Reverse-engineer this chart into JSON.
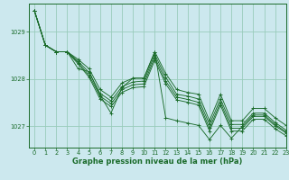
{
  "bg_color": "#cce8ee",
  "grid_color": "#99ccbb",
  "line_color": "#1a6b2a",
  "marker_color": "#1a6b2a",
  "xlabel": "Graphe pression niveau de la mer (hPa)",
  "xlabel_fontsize": 6.0,
  "tick_fontsize": 4.8,
  "xlim": [
    -0.5,
    23
  ],
  "ylim": [
    1026.55,
    1029.6
  ],
  "yticks": [
    1027,
    1028,
    1029
  ],
  "xticks": [
    0,
    1,
    2,
    3,
    4,
    5,
    6,
    7,
    8,
    9,
    10,
    11,
    12,
    13,
    14,
    15,
    16,
    17,
    18,
    19,
    20,
    21,
    22,
    23
  ],
  "series": [
    [
      1029.45,
      1028.72,
      1028.58,
      1028.58,
      1028.42,
      1028.22,
      1027.78,
      1027.62,
      1027.92,
      1028.02,
      1028.02,
      1028.58,
      1028.12,
      1027.78,
      1027.72,
      1027.68,
      1027.12,
      1027.68,
      1027.12,
      1027.12,
      1027.38,
      1027.38,
      1027.18,
      1027.02
    ],
    [
      1029.45,
      1028.72,
      1028.58,
      1028.58,
      1028.38,
      1028.14,
      1027.7,
      1027.54,
      1027.84,
      1027.94,
      1027.96,
      1028.52,
      1028.04,
      1027.68,
      1027.64,
      1027.58,
      1027.04,
      1027.58,
      1027.04,
      1027.04,
      1027.28,
      1027.28,
      1027.08,
      1026.92
    ],
    [
      1029.45,
      1028.72,
      1028.58,
      1028.58,
      1028.35,
      1028.08,
      1027.64,
      1027.48,
      1027.78,
      1027.88,
      1027.9,
      1028.46,
      1027.96,
      1027.62,
      1027.57,
      1027.51,
      1026.96,
      1027.51,
      1026.96,
      1026.96,
      1027.21,
      1027.21,
      1027.01,
      1026.86
    ],
    [
      1029.45,
      1028.72,
      1028.58,
      1028.58,
      1028.32,
      1028.04,
      1027.58,
      1027.42,
      1027.72,
      1027.82,
      1027.84,
      1028.4,
      1027.9,
      1027.56,
      1027.51,
      1027.45,
      1026.9,
      1027.45,
      1026.9,
      1026.9,
      1027.15,
      1027.15,
      1026.95,
      1026.8
    ],
    [
      1029.45,
      1028.72,
      1028.58,
      1028.58,
      1028.22,
      1028.16,
      1027.66,
      1027.28,
      1027.82,
      1028.02,
      1028.02,
      1028.58,
      1027.18,
      1027.12,
      1027.07,
      1027.02,
      1026.72,
      1027.02,
      1026.75,
      1027.0,
      1027.24,
      1027.24,
      1027.04,
      1026.88
    ]
  ]
}
